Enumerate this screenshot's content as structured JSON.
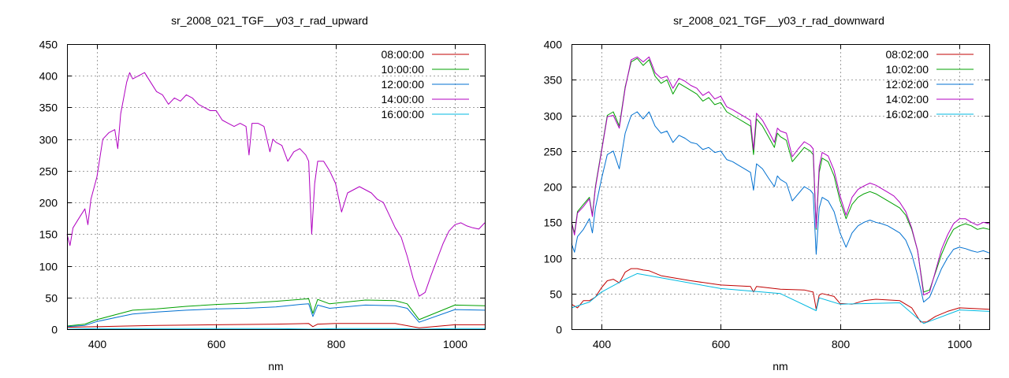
{
  "chart_data": [
    {
      "type": "line",
      "title": "sr_2008_021_TGF__y03_r_rad_upward",
      "xlabel": "nm",
      "ylabel": "",
      "xlim": [
        350,
        1050
      ],
      "ylim": [
        0,
        450
      ],
      "xticks": [
        400,
        600,
        800,
        1000
      ],
      "yticks": [
        0,
        50,
        100,
        150,
        200,
        250,
        300,
        350,
        400,
        450
      ],
      "grid": true,
      "legend_position": "top-right",
      "series": [
        {
          "name": "08:00:00",
          "color": "#c00000",
          "x": [
            350,
            400,
            450,
            500,
            600,
            700,
            755,
            762,
            770,
            800,
            900,
            940,
            1000,
            1050
          ],
          "y": [
            3,
            4,
            5,
            6,
            7,
            8,
            9,
            4,
            8,
            9,
            9,
            2,
            7,
            7
          ]
        },
        {
          "name": "10:00:00",
          "color": "#00a000",
          "x": [
            350,
            380,
            400,
            440,
            460,
            500,
            550,
            600,
            650,
            700,
            740,
            755,
            762,
            770,
            790,
            850,
            900,
            920,
            940,
            1000,
            1050
          ],
          "y": [
            5,
            8,
            15,
            25,
            30,
            32,
            36,
            39,
            41,
            44,
            47,
            48,
            25,
            47,
            40,
            46,
            45,
            40,
            15,
            38,
            37
          ]
        },
        {
          "name": "12:00:00",
          "color": "#0070d0",
          "x": [
            350,
            380,
            400,
            440,
            460,
            500,
            550,
            600,
            650,
            700,
            740,
            755,
            762,
            770,
            790,
            850,
            900,
            920,
            940,
            1000,
            1050
          ],
          "y": [
            4,
            6,
            12,
            20,
            24,
            27,
            30,
            32,
            33,
            35,
            39,
            40,
            20,
            38,
            33,
            38,
            37,
            33,
            11,
            31,
            30
          ]
        },
        {
          "name": "14:00:00",
          "color": "#b000c0",
          "x": [
            350,
            355,
            360,
            370,
            380,
            385,
            390,
            400,
            410,
            420,
            430,
            435,
            440,
            450,
            455,
            460,
            470,
            480,
            490,
            500,
            510,
            520,
            530,
            540,
            550,
            560,
            570,
            580,
            590,
            600,
            610,
            620,
            630,
            640,
            650,
            655,
            660,
            670,
            680,
            690,
            695,
            700,
            710,
            720,
            730,
            740,
            750,
            755,
            760,
            765,
            770,
            780,
            790,
            800,
            810,
            820,
            830,
            840,
            850,
            860,
            870,
            880,
            890,
            900,
            910,
            920,
            930,
            940,
            950,
            960,
            970,
            980,
            990,
            1000,
            1010,
            1020,
            1030,
            1040,
            1050
          ],
          "y": [
            150,
            132,
            160,
            175,
            190,
            165,
            205,
            240,
            300,
            310,
            315,
            285,
            340,
            390,
            405,
            395,
            400,
            405,
            390,
            375,
            370,
            355,
            365,
            360,
            370,
            365,
            355,
            350,
            345,
            345,
            330,
            325,
            320,
            325,
            320,
            275,
            325,
            325,
            320,
            280,
            300,
            295,
            290,
            265,
            280,
            285,
            275,
            265,
            150,
            230,
            265,
            265,
            250,
            230,
            185,
            215,
            220,
            225,
            220,
            215,
            205,
            200,
            180,
            160,
            145,
            115,
            80,
            52,
            58,
            85,
            110,
            135,
            155,
            165,
            168,
            163,
            160,
            158,
            168
          ]
        },
        {
          "name": "16:00:00",
          "color": "#00b8e0",
          "x": [
            350,
            400,
            500,
            600,
            700,
            760,
            800,
            900,
            940,
            1000,
            1050
          ],
          "y": [
            0,
            1,
            1,
            1,
            1,
            0,
            1,
            1,
            0,
            1,
            1
          ]
        }
      ]
    },
    {
      "type": "line",
      "title": "sr_2008_021_TGF__y03_r_rad_downward",
      "xlabel": "nm",
      "ylabel": "",
      "xlim": [
        350,
        1050
      ],
      "ylim": [
        0,
        400
      ],
      "xticks": [
        400,
        600,
        800,
        1000
      ],
      "yticks": [
        0,
        50,
        100,
        150,
        200,
        250,
        300,
        350,
        400
      ],
      "grid": true,
      "legend_position": "top-right",
      "series": [
        {
          "name": "08:02:00",
          "color": "#c00000",
          "x": [
            350,
            360,
            370,
            380,
            390,
            400,
            410,
            420,
            430,
            440,
            450,
            460,
            470,
            480,
            500,
            550,
            600,
            650,
            655,
            660,
            700,
            740,
            755,
            760,
            765,
            770,
            790,
            800,
            820,
            840,
            860,
            880,
            900,
            920,
            935,
            945,
            960,
            980,
            1000,
            1050
          ],
          "y": [
            35,
            30,
            40,
            40,
            45,
            58,
            68,
            70,
            65,
            80,
            85,
            85,
            83,
            82,
            75,
            68,
            62,
            60,
            52,
            60,
            56,
            55,
            52,
            28,
            48,
            50,
            46,
            36,
            35,
            40,
            42,
            41,
            40,
            30,
            10,
            10,
            18,
            25,
            30,
            28
          ]
        },
        {
          "name": "10:02:00",
          "color": "#00a000",
          "x": [
            350,
            355,
            360,
            370,
            380,
            385,
            390,
            400,
            410,
            420,
            430,
            440,
            450,
            460,
            470,
            480,
            490,
            500,
            510,
            520,
            530,
            540,
            550,
            560,
            570,
            580,
            590,
            600,
            610,
            620,
            630,
            640,
            650,
            655,
            660,
            670,
            680,
            690,
            695,
            700,
            710,
            720,
            730,
            740,
            750,
            755,
            760,
            765,
            770,
            780,
            790,
            800,
            810,
            820,
            830,
            840,
            850,
            860,
            870,
            880,
            890,
            900,
            910,
            920,
            930,
            940,
            950,
            960,
            970,
            980,
            990,
            1000,
            1010,
            1020,
            1030,
            1040,
            1050
          ],
          "y": [
            150,
            135,
            165,
            175,
            185,
            160,
            200,
            250,
            300,
            305,
            285,
            340,
            375,
            380,
            370,
            378,
            355,
            345,
            350,
            330,
            345,
            340,
            335,
            330,
            320,
            325,
            315,
            318,
            305,
            300,
            295,
            290,
            285,
            245,
            295,
            285,
            270,
            255,
            275,
            270,
            265,
            235,
            245,
            255,
            250,
            245,
            140,
            220,
            240,
            235,
            215,
            180,
            155,
            175,
            185,
            190,
            193,
            190,
            185,
            180,
            175,
            170,
            160,
            140,
            110,
            52,
            55,
            80,
            105,
            125,
            140,
            145,
            148,
            145,
            140,
            142,
            140
          ]
        },
        {
          "name": "12:02:00",
          "color": "#0070d0",
          "x": [
            350,
            355,
            360,
            370,
            380,
            385,
            390,
            400,
            410,
            420,
            430,
            440,
            450,
            460,
            470,
            480,
            490,
            500,
            510,
            520,
            530,
            540,
            550,
            560,
            570,
            580,
            590,
            600,
            610,
            620,
            630,
            640,
            650,
            655,
            660,
            670,
            680,
            690,
            695,
            700,
            710,
            720,
            730,
            740,
            750,
            755,
            760,
            765,
            770,
            780,
            790,
            800,
            810,
            820,
            830,
            840,
            850,
            860,
            870,
            880,
            890,
            900,
            910,
            920,
            930,
            940,
            950,
            960,
            970,
            980,
            990,
            1000,
            1010,
            1020,
            1030,
            1040,
            1050
          ],
          "y": [
            120,
            108,
            130,
            140,
            155,
            135,
            170,
            210,
            245,
            250,
            225,
            275,
            300,
            305,
            295,
            305,
            285,
            275,
            278,
            262,
            272,
            268,
            262,
            260,
            252,
            255,
            248,
            250,
            238,
            235,
            230,
            225,
            220,
            195,
            232,
            225,
            212,
            200,
            215,
            210,
            205,
            180,
            190,
            200,
            195,
            190,
            105,
            170,
            185,
            180,
            165,
            135,
            115,
            135,
            145,
            150,
            153,
            150,
            148,
            145,
            140,
            135,
            125,
            105,
            75,
            38,
            45,
            65,
            85,
            100,
            112,
            115,
            113,
            110,
            108,
            110,
            107
          ]
        },
        {
          "name": "14:02:00",
          "color": "#b000c0",
          "x": [
            350,
            355,
            360,
            370,
            380,
            385,
            390,
            400,
            410,
            420,
            430,
            440,
            450,
            460,
            470,
            480,
            490,
            500,
            510,
            520,
            530,
            540,
            550,
            560,
            570,
            580,
            590,
            600,
            610,
            620,
            630,
            640,
            650,
            655,
            660,
            670,
            680,
            690,
            695,
            700,
            710,
            720,
            730,
            740,
            750,
            755,
            760,
            765,
            770,
            780,
            790,
            800,
            810,
            820,
            830,
            840,
            850,
            860,
            870,
            880,
            890,
            900,
            910,
            920,
            930,
            940,
            950,
            960,
            970,
            980,
            990,
            1000,
            1010,
            1020,
            1030,
            1040,
            1050
          ],
          "y": [
            150,
            132,
            163,
            172,
            183,
            158,
            198,
            248,
            298,
            300,
            282,
            338,
            378,
            382,
            375,
            382,
            360,
            352,
            355,
            338,
            352,
            348,
            342,
            338,
            328,
            333,
            323,
            327,
            312,
            308,
            303,
            298,
            293,
            252,
            303,
            293,
            278,
            262,
            282,
            278,
            275,
            242,
            253,
            263,
            258,
            253,
            142,
            228,
            248,
            243,
            223,
            187,
            160,
            185,
            196,
            201,
            205,
            202,
            197,
            192,
            187,
            178,
            165,
            142,
            110,
            48,
            52,
            82,
            112,
            132,
            148,
            155,
            155,
            150,
            146,
            150,
            148
          ]
        },
        {
          "name": "16:02:00",
          "color": "#00b8e0",
          "x": [
            350,
            380,
            400,
            440,
            460,
            500,
            600,
            700,
            760,
            765,
            800,
            900,
            940,
            1000,
            1050
          ],
          "y": [
            30,
            38,
            52,
            70,
            78,
            72,
            57,
            50,
            26,
            44,
            35,
            37,
            8,
            27,
            25
          ]
        }
      ]
    }
  ]
}
